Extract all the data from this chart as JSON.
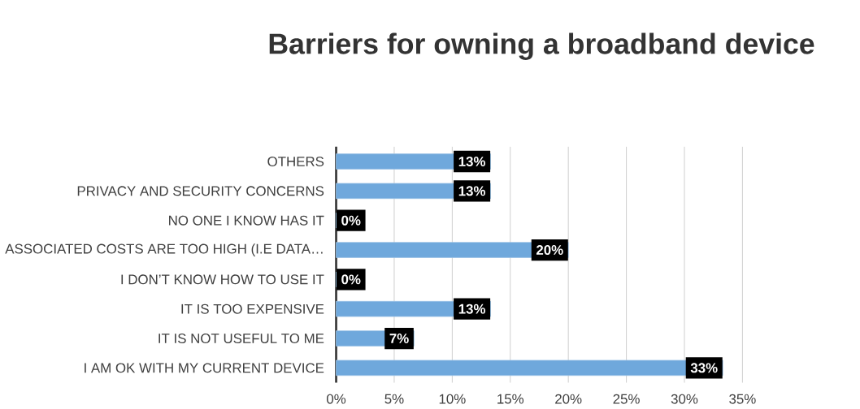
{
  "chart_data": {
    "type": "bar",
    "orientation": "horizontal",
    "title": "Barriers for owning a broadband device",
    "categories": [
      "OTHERS",
      "PRIVACY AND SECURITY CONCERNS",
      "NO ONE I KNOW HAS IT",
      "ASSOCIATED COSTS ARE TOO HIGH (I.E DATA…",
      "I DON’T KNOW HOW TO USE IT",
      "IT IS TOO EXPENSIVE",
      "IT IS NOT USEFUL TO ME",
      "I AM OK WITH MY CURRENT DEVICE"
    ],
    "values": [
      13.3,
      13.3,
      0,
      20,
      0,
      13.3,
      6.7,
      33.3
    ],
    "value_labels": [
      "13%",
      "13%",
      "0%",
      "20%",
      "0%",
      "13%",
      "7%",
      "33%"
    ],
    "color": "#6fa8dc",
    "xlim": [
      0,
      35
    ],
    "xticks": [
      {
        "value": 0,
        "label": "0%"
      },
      {
        "value": 5,
        "label": "5%"
      },
      {
        "value": 10,
        "label": "10%"
      },
      {
        "value": 15,
        "label": "15%"
      },
      {
        "value": 20,
        "label": "20%"
      },
      {
        "value": 25,
        "label": "25%"
      },
      {
        "value": 30,
        "label": "30%"
      },
      {
        "value": 35,
        "label": "35%"
      }
    ],
    "grid": "x"
  }
}
